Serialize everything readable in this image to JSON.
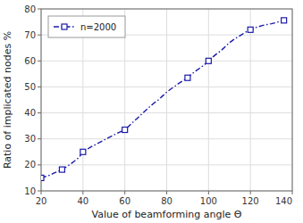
{
  "chart_data": {
    "type": "line",
    "x": [
      20,
      22,
      24,
      26,
      28,
      30,
      32,
      34,
      36,
      38,
      40,
      42,
      44,
      46,
      48,
      50,
      52,
      54,
      56,
      58,
      60,
      62,
      64,
      66,
      68,
      70,
      72,
      74,
      76,
      78,
      80,
      82,
      84,
      86,
      88,
      90,
      92,
      94,
      96,
      98,
      100,
      102,
      104,
      106,
      108,
      110,
      112,
      114,
      116,
      118,
      120,
      122,
      124,
      126,
      128,
      130,
      132,
      134,
      136
    ],
    "series": [
      {
        "name": "n=2000",
        "color": "#1a1aaa",
        "line_style": "dashdot",
        "values": [
          15.0,
          15.5,
          16.0,
          16.8,
          17.5,
          18.2,
          19.2,
          20.3,
          21.5,
          22.8,
          25.0,
          26.0,
          27.0,
          27.8,
          28.7,
          29.5,
          30.4,
          31.2,
          32.0,
          32.8,
          33.5,
          35.0,
          36.5,
          38.0,
          39.5,
          41.0,
          42.5,
          43.8,
          45.0,
          46.5,
          48.0,
          49.2,
          50.3,
          51.5,
          52.5,
          53.5,
          55.0,
          56.2,
          57.3,
          58.5,
          60.0,
          61.5,
          62.8,
          64.0,
          65.5,
          67.0,
          68.2,
          69.2,
          70.2,
          71.2,
          72.0,
          72.7,
          73.2,
          73.7,
          74.0,
          74.3,
          74.7,
          75.2,
          75.6
        ]
      },
      {
        "type": "scatter",
        "marker": "square",
        "color": "#1a1aaa",
        "values": [
          15.0,
          null,
          null,
          null,
          null,
          18.2,
          null,
          null,
          null,
          null,
          25.0,
          null,
          null,
          null,
          null,
          null,
          null,
          null,
          null,
          null,
          33.5,
          null,
          null,
          null,
          null,
          null,
          null,
          null,
          null,
          null,
          null,
          null,
          null,
          null,
          null,
          53.5,
          null,
          null,
          null,
          null,
          60.0,
          null,
          null,
          null,
          null,
          null,
          null,
          null,
          null,
          null,
          72.0,
          null,
          null,
          null,
          null,
          null,
          null,
          null,
          75.6
        ]
      }
    ],
    "xlabel": "Value of beamforming angle Θ",
    "ylabel": "Ratio of implicated nodes %",
    "xlim": [
      20,
      140
    ],
    "ylim": [
      10,
      80
    ],
    "xticks": [
      20,
      40,
      60,
      80,
      100,
      120,
      140
    ],
    "yticks": [
      10,
      20,
      30,
      40,
      50,
      60,
      70,
      80
    ],
    "grid": true,
    "legend": "upper-left"
  }
}
